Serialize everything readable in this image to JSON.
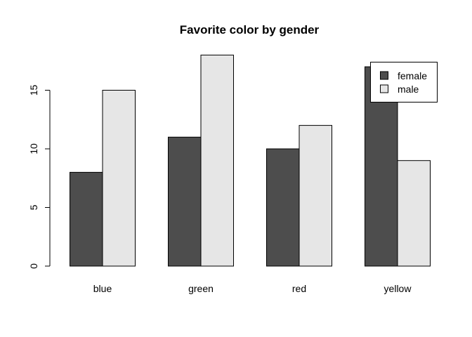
{
  "chart_data": {
    "type": "bar",
    "title": "Favorite color by gender",
    "xlabel": "",
    "ylabel": "",
    "categories": [
      "blue",
      "green",
      "red",
      "yellow"
    ],
    "series": [
      {
        "name": "female",
        "values": [
          8,
          11,
          10,
          17
        ],
        "color": "#4d4d4d"
      },
      {
        "name": "male",
        "values": [
          15,
          18,
          12,
          9
        ],
        "color": "#e6e6e6"
      }
    ],
    "yticks": [
      0,
      5,
      10,
      15
    ],
    "ylim": [
      0,
      18
    ],
    "grid": false,
    "legend_position": "top-right"
  }
}
